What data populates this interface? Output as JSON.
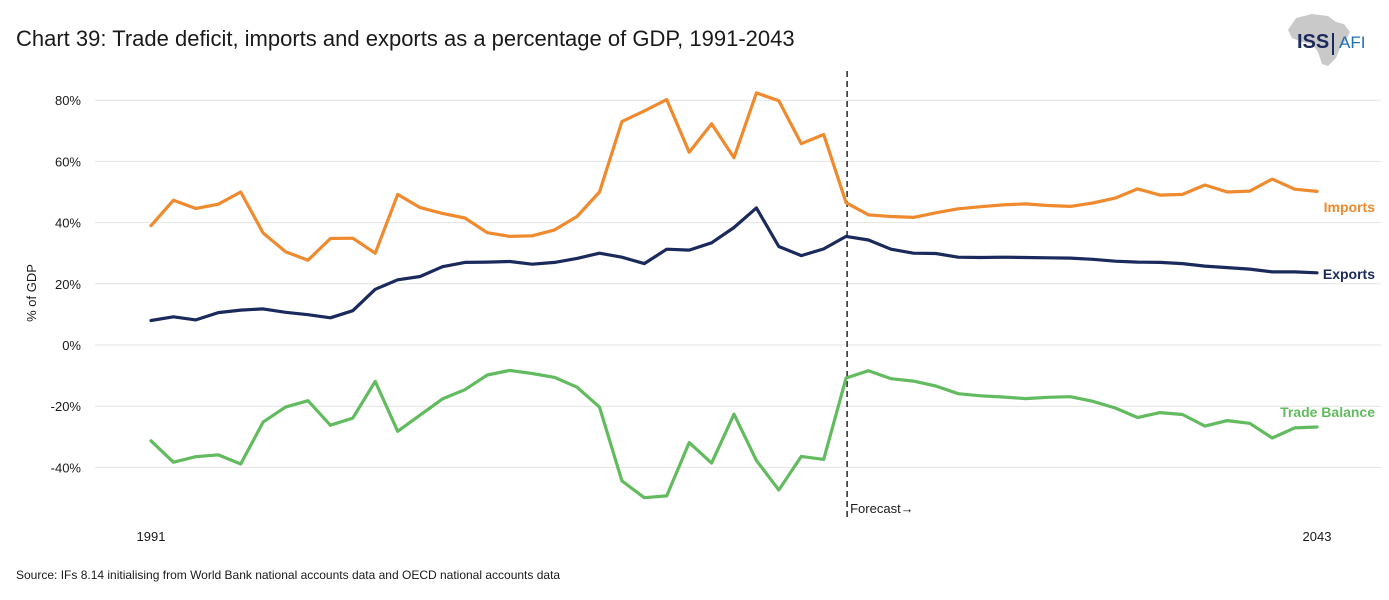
{
  "title": "Chart 39: Trade deficit, imports and exports as a percentage of GDP, 1991-2043",
  "logo": {
    "primary": "ISS",
    "secondary": "AFI"
  },
  "source": "Source: IFs 8.14 initialising from World Bank national accounts data and OECD national accounts data",
  "chart_data": {
    "type": "line",
    "title": "Chart 39: Trade deficit, imports and exports as a percentage of GDP, 1991-2043",
    "xlabel": "",
    "ylabel": "% of GDP",
    "x_start": 1991,
    "x_end": 2043,
    "x_tick_labels": [
      "1991",
      "2043"
    ],
    "ylim": [
      -55,
      85
    ],
    "y_ticks": [
      80,
      60,
      40,
      20,
      0,
      -20,
      -40
    ],
    "y_tick_labels": [
      "80%",
      "60%",
      "40%",
      "20%",
      "0%",
      "-20%",
      "-40%"
    ],
    "grid": true,
    "forecast_year": 2022,
    "forecast_label": "Forecast→",
    "series": [
      {
        "name": "Imports",
        "color": "#ef8a2e",
        "values": [
          39,
          47.3,
          44.6,
          46,
          50,
          36.6,
          30.5,
          27.7,
          34.8,
          34.9,
          30,
          49.2,
          44.9,
          43,
          41.5,
          36.7,
          35.5,
          35.7,
          37.6,
          42,
          50,
          73,
          76.5,
          80.2,
          63,
          72.3,
          61.2,
          82.4,
          79.8,
          65.8,
          68.8,
          46.5,
          42.5,
          42,
          41.7,
          43.2,
          44.5,
          45.2,
          45.8,
          46.1,
          45.6,
          45.3,
          46.4,
          48,
          51,
          49,
          49.2,
          52.3,
          50,
          50.3,
          54.2,
          50.9,
          50.2
        ]
      },
      {
        "name": "Exports",
        "color": "#1b2a5c",
        "values": [
          8,
          9.2,
          8.2,
          10.6,
          11.4,
          11.8,
          10.7,
          9.9,
          8.9,
          11.2,
          18.2,
          21.3,
          22.4,
          25.6,
          27,
          27.1,
          27.3,
          26.4,
          27,
          28.3,
          30,
          28.7,
          26.6,
          31.3,
          31,
          33.4,
          38.4,
          44.8,
          32.2,
          29.2,
          31.4,
          35.5,
          34.3,
          31.3,
          30,
          29.9,
          28.7,
          28.6,
          28.7,
          28.6,
          28.5,
          28.4,
          28,
          27.4,
          27.1,
          27,
          26.6,
          25.8,
          25.3,
          24.8,
          23.9,
          23.9,
          23.6
        ]
      },
      {
        "name": "Trade Balance",
        "color": "#62bb5f",
        "values": [
          -31.3,
          -38.3,
          -36.5,
          -35.9,
          -38.9,
          -25.2,
          -20.3,
          -18.2,
          -26.2,
          -23.9,
          -11.9,
          -28.2,
          -22.9,
          -17.6,
          -14.6,
          -9.8,
          -8.3,
          -9.3,
          -10.6,
          -13.8,
          -20.3,
          -44.4,
          -49.9,
          -49.3,
          -31.9,
          -38.6,
          -22.6,
          -37.7,
          -47.4,
          -36.4,
          -37.4,
          -10.8,
          -8.4,
          -11,
          -11.8,
          -13.4,
          -15.9,
          -16.6,
          -17,
          -17.5,
          -17.1,
          -16.9,
          -18.4,
          -20.6,
          -23.7,
          -22.1,
          -22.7,
          -26.5,
          -24.7,
          -25.6,
          -30.4,
          -27.1,
          -26.8
        ]
      }
    ]
  }
}
